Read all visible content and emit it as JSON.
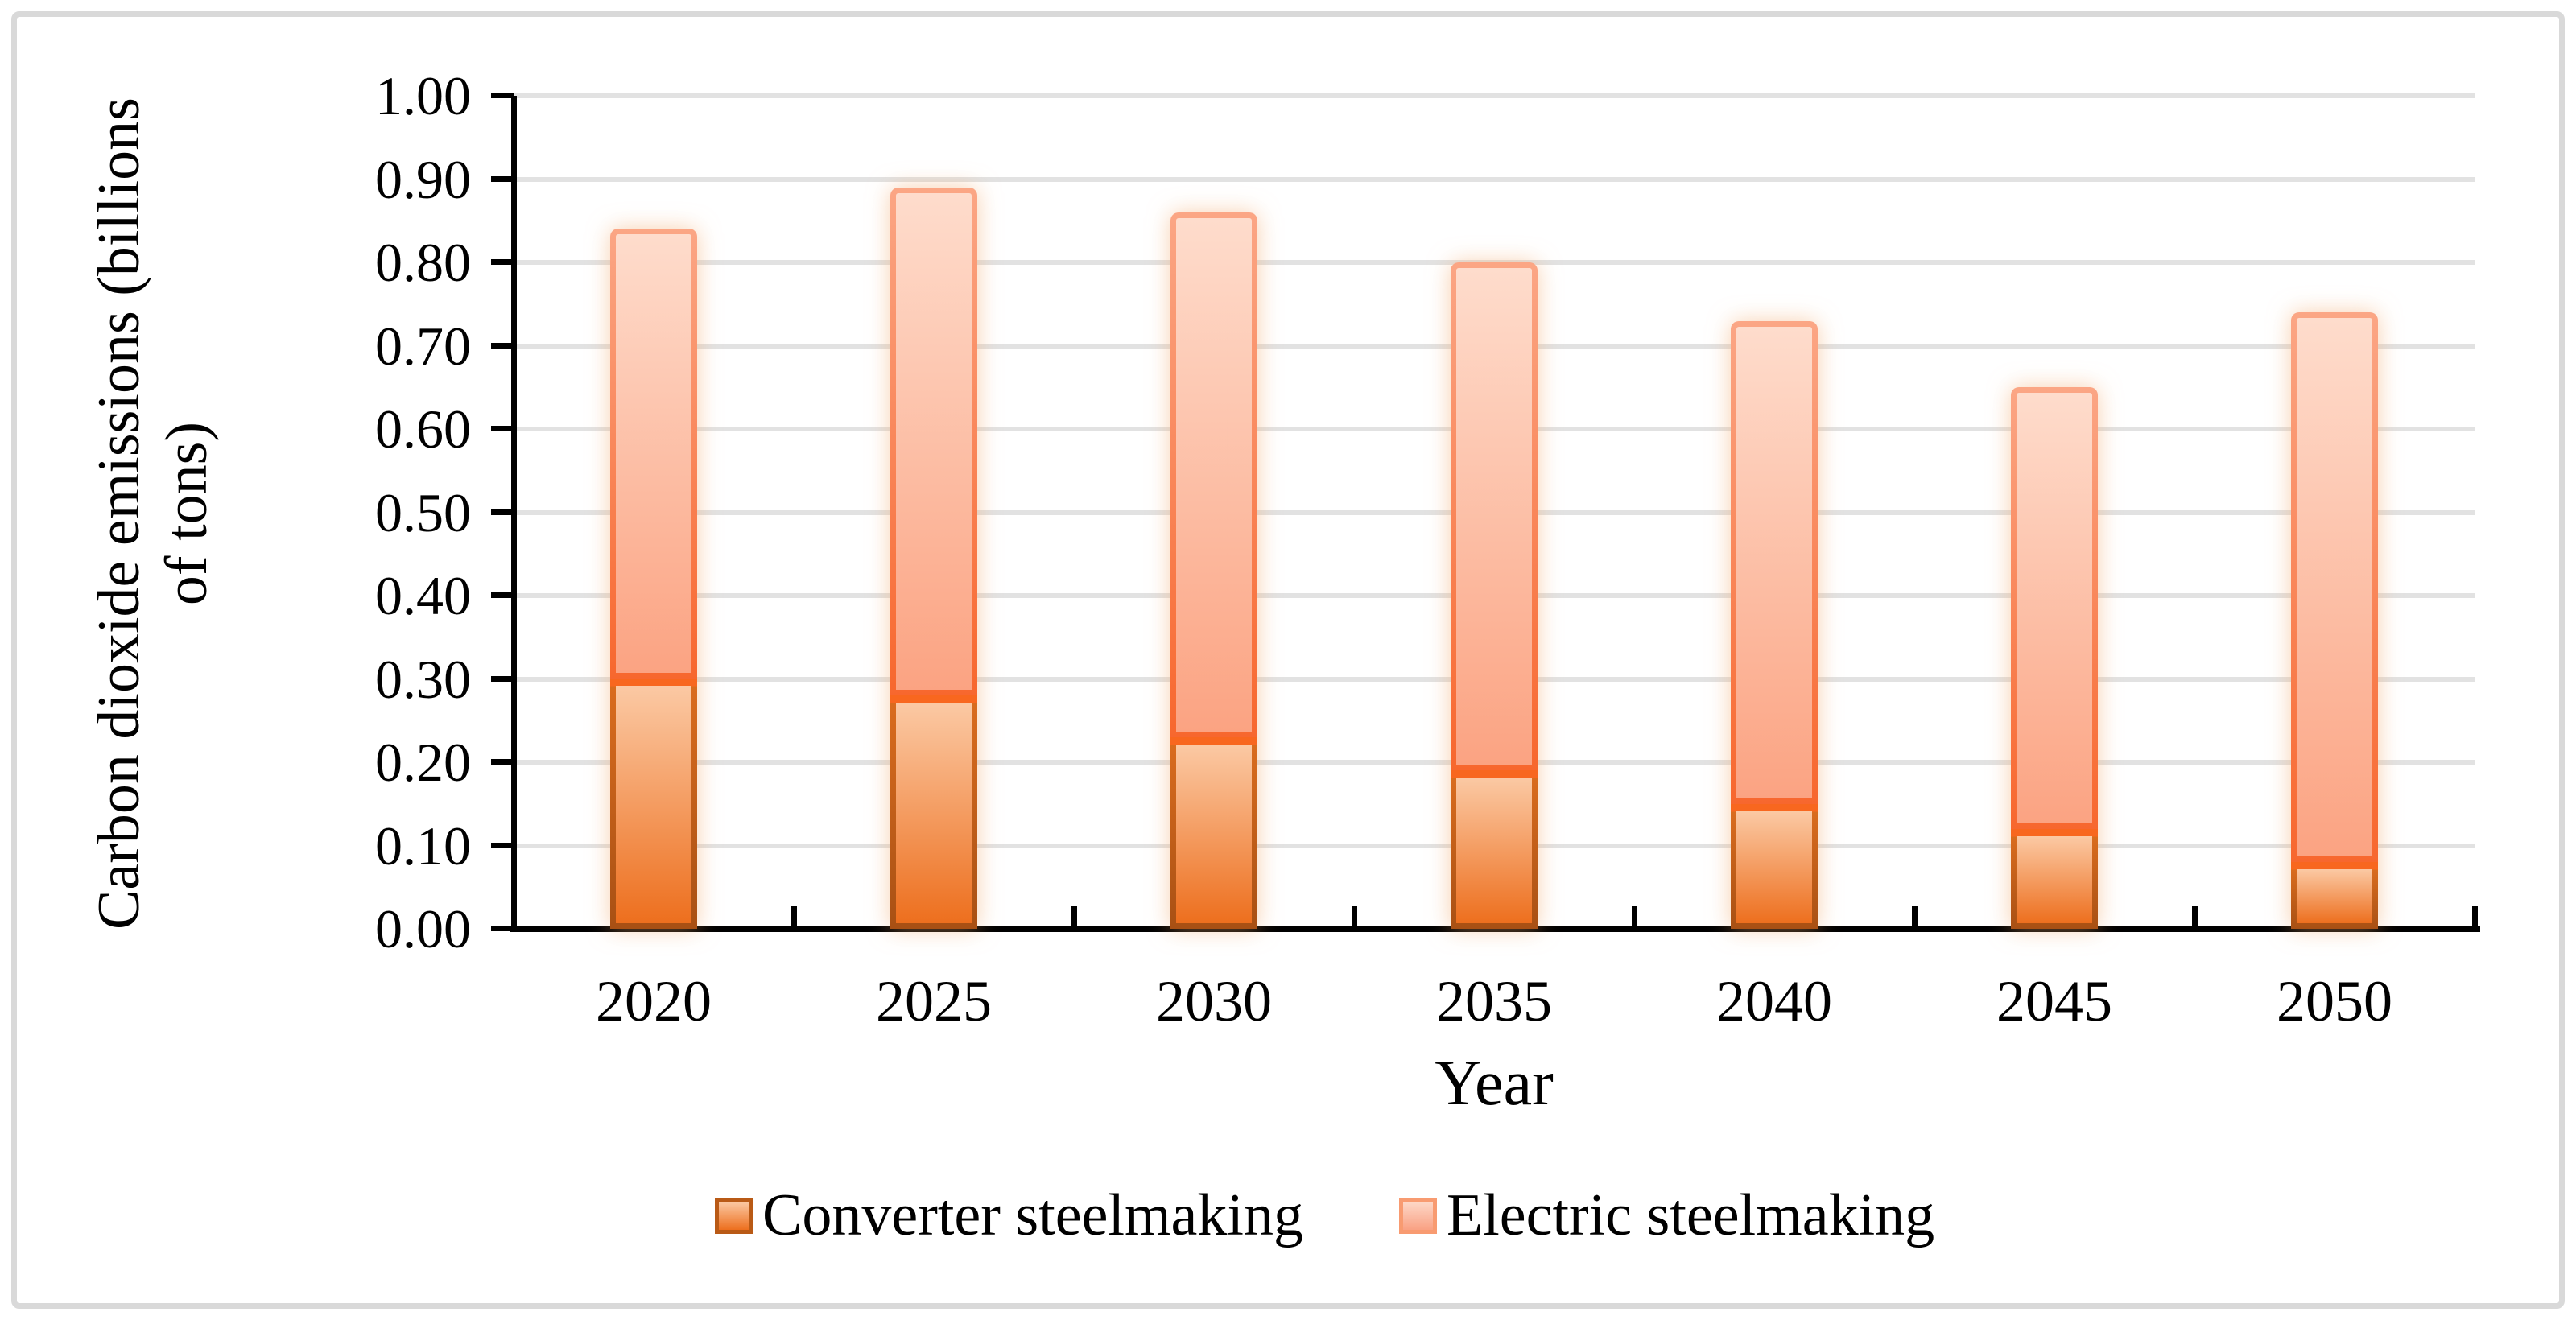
{
  "figure": {
    "background": "#FFFFFF",
    "border_color": "#D9D9D9"
  },
  "chart_data": {
    "type": "bar",
    "stacked": true,
    "grid": true,
    "legend_position": "bottom",
    "gridline_color": "#E2E2E2",
    "axis_color": "#000000",
    "text_color": "#000000",
    "x_axis": {
      "title": "Year",
      "categories": [
        "2020",
        "2025",
        "2030",
        "2035",
        "2040",
        "2045",
        "2050"
      ]
    },
    "y_axis": {
      "title_line1": "Carbon dioxide emissions (billions",
      "title_line2": "of tons)",
      "min": 0.0,
      "max": 1.0,
      "step": 0.1,
      "tick_labels": [
        "0.00",
        "0.10",
        "0.20",
        "0.30",
        "0.40",
        "0.50",
        "0.60",
        "0.70",
        "0.80",
        "0.90",
        "1.00"
      ]
    },
    "series": [
      {
        "name": "Converter steelmaking",
        "values": [
          0.3,
          0.28,
          0.23,
          0.19,
          0.15,
          0.12,
          0.08
        ],
        "fill_top": "#FBC9A4",
        "fill_bottom": "#ED6F1E",
        "divider_color": "#F8671F",
        "border_side_top": "#D96C1E",
        "border_side_bottom": "#A85014"
      },
      {
        "name": "Electric steelmaking",
        "values": [
          0.54,
          0.61,
          0.63,
          0.61,
          0.58,
          0.53,
          0.66
        ],
        "fill_top": "#FEDCCC",
        "fill_bottom": "#FBA382",
        "border_top": "#FBA685",
        "border_bottom": "#F7672E"
      }
    ],
    "totals": [
      0.84,
      0.89,
      0.86,
      0.8,
      0.73,
      0.65,
      0.74
    ]
  }
}
